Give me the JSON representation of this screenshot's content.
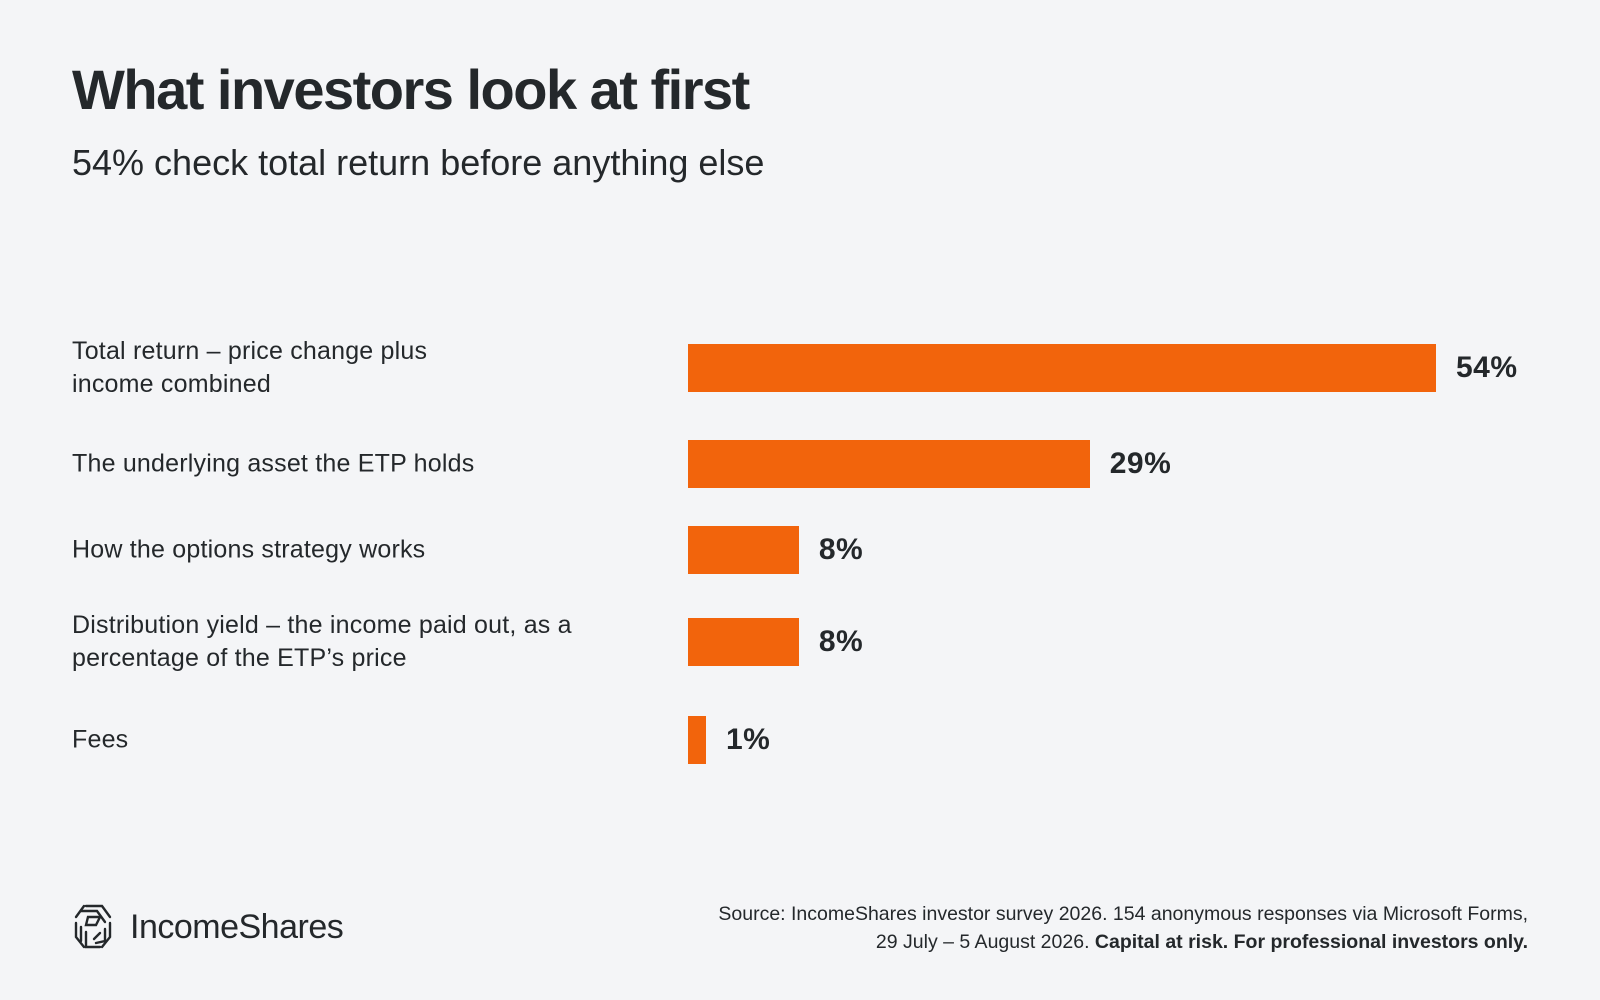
{
  "header": {
    "title": "What investors look at first",
    "subtitle": "54% check total return before anything else"
  },
  "colors": {
    "bar": "#f2640c",
    "background": "#f4f5f7",
    "text": "#24282b"
  },
  "chart_data": {
    "type": "bar",
    "orientation": "horizontal",
    "categories": [
      [
        "Total return – price change plus",
        "income combined"
      ],
      [
        "The underlying asset the ETP holds"
      ],
      [
        "How the options strategy works"
      ],
      [
        "Distribution yield – the income paid out, as a",
        "percentage of the ETP’s price"
      ],
      [
        "Fees"
      ]
    ],
    "values": [
      54,
      29,
      8,
      8,
      1
    ],
    "value_labels": [
      "54%",
      "29%",
      "8%",
      "8%",
      "1%"
    ],
    "xlim": [
      0,
      54
    ],
    "grid": false
  },
  "footer": {
    "brand": "IncomeShares",
    "logo_icon": "incomeshares-logo-icon",
    "source_line1": "Source: IncomeShares investor survey 2026. 154 anonymous responses via Microsoft Forms,",
    "source_line2": "29 July – 5 August 2026.",
    "source_bold": "Capital at risk. For professional investors only."
  }
}
